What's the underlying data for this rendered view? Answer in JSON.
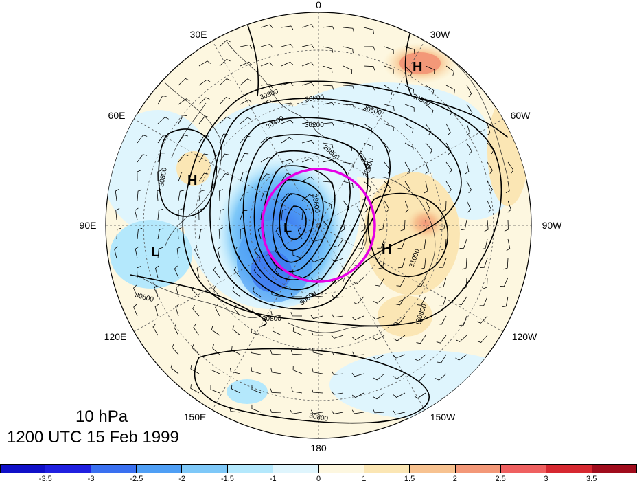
{
  "map": {
    "projection": "north-polar-stereographic",
    "longitude_labels": [
      {
        "text": "0",
        "lon": 0
      },
      {
        "text": "30E",
        "lon": 30
      },
      {
        "text": "60E",
        "lon": 60
      },
      {
        "text": "90E",
        "lon": 90
      },
      {
        "text": "120E",
        "lon": 120
      },
      {
        "text": "150E",
        "lon": 150
      },
      {
        "text": "180",
        "lon": 180
      },
      {
        "text": "150W",
        "lon": -150
      },
      {
        "text": "120W",
        "lon": -120
      },
      {
        "text": "90W",
        "lon": -90
      },
      {
        "text": "60W",
        "lon": -60
      },
      {
        "text": "30W",
        "lon": -30
      }
    ],
    "pressure_systems": [
      {
        "type": "H",
        "region": "north-atlantic"
      },
      {
        "type": "H",
        "region": "central-asia"
      },
      {
        "type": "L",
        "region": "tibet"
      },
      {
        "type": "L",
        "region": "east-siberia"
      },
      {
        "type": "H",
        "region": "north-america"
      }
    ],
    "contour_labels": [
      "30800",
      "30600",
      "30400",
      "30200",
      "30000",
      "29800",
      "29600",
      "28600",
      "31000"
    ],
    "highlight_circle_color": "#e600e6",
    "contour_color": "#000000"
  },
  "info": {
    "level": "10 hPa",
    "time": "1200 UTC 15 Feb 1999"
  },
  "colorbar": {
    "colors": [
      "#1010c8",
      "#2020e0",
      "#3a70f0",
      "#4f9ff5",
      "#7ec8f8",
      "#b4e8fc",
      "#dff5fd",
      "#fdf7e0",
      "#fbe6b4",
      "#f7c290",
      "#f39878",
      "#ef6060",
      "#d62830",
      "#a00c1c"
    ],
    "tick_labels": [
      "-3.5",
      "-3",
      "-2.5",
      "-2",
      "-1.5",
      "-1",
      "0",
      "1",
      "1.5",
      "2",
      "2.5",
      "3",
      "3.5"
    ]
  }
}
